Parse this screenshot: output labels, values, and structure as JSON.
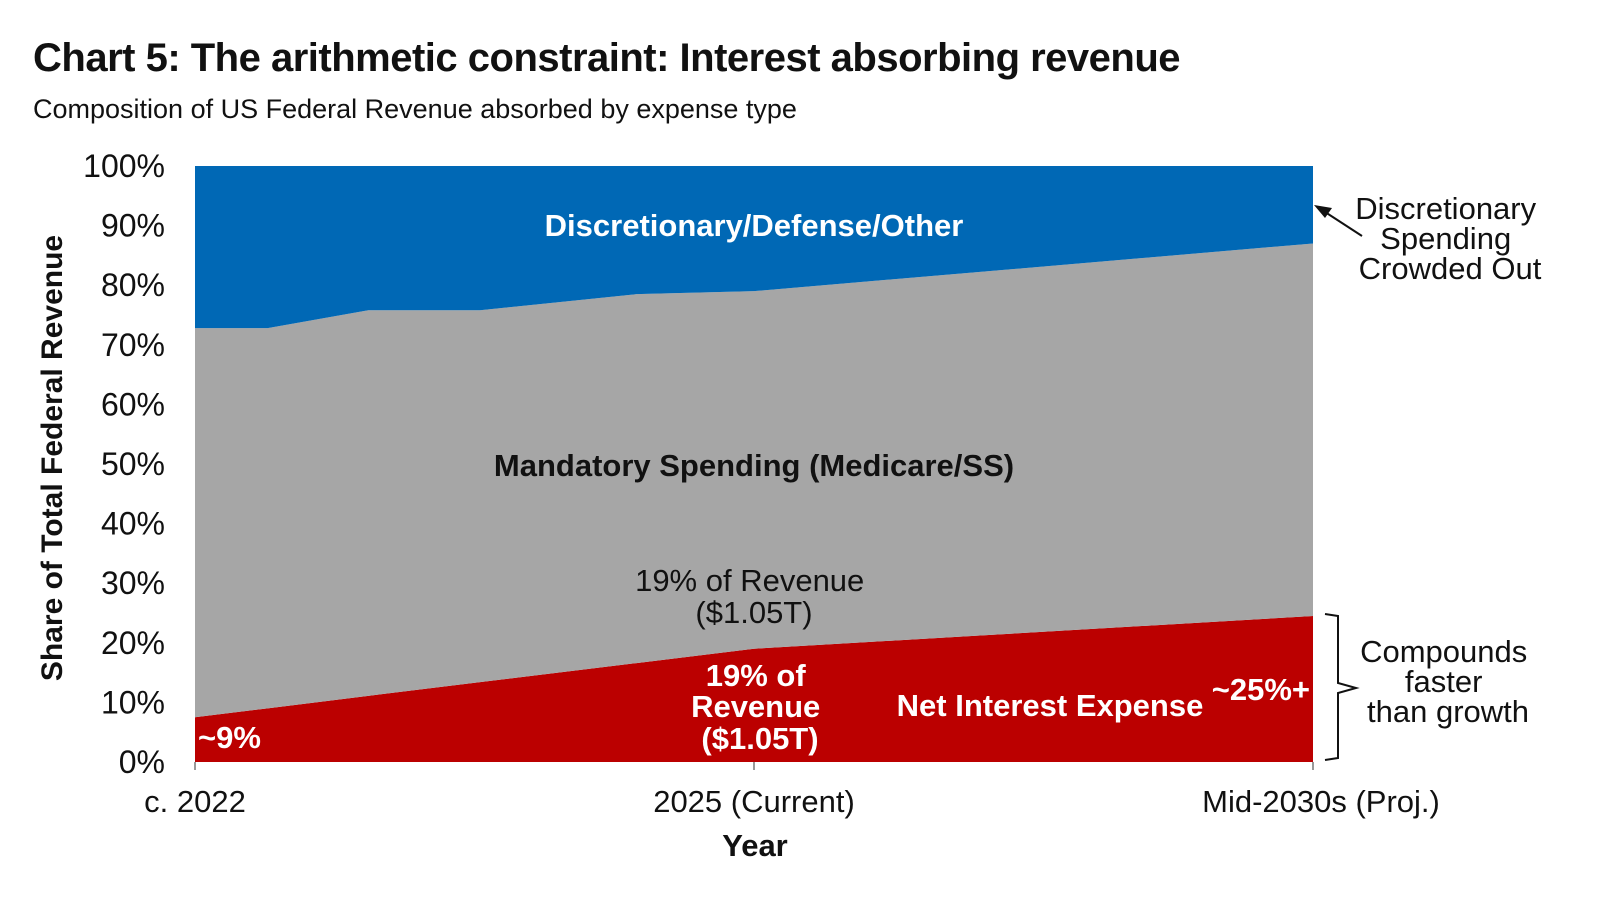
{
  "chart_data": {
    "type": "area",
    "stacked": true,
    "title": "Chart 5: The arithmetic constraint: Interest absorbing revenue",
    "subtitle": "Composition of US Federal Revenue absorbed by expense type",
    "xlabel": "Year",
    "ylabel": "Share of Total Federal Revenue",
    "x_tick_labels": [
      "c. 2022",
      "2025 (Current)",
      "Mid-2030s (Proj.)"
    ],
    "x_index": [
      0,
      0.13,
      0.31,
      0.51,
      0.79,
      1,
      2
    ],
    "ylim": [
      0,
      100
    ],
    "y_ticks": [
      "0%",
      "10%",
      "20%",
      "30%",
      "40%",
      "50%",
      "60%",
      "70%",
      "80%",
      "90%",
      "100%"
    ],
    "grid": false,
    "series": [
      {
        "name": "Net Interest Expense",
        "color": "#bb0000",
        "values": [
          7.5,
          9.0,
          11.1,
          13.4,
          16.6,
          19,
          24.5
        ]
      },
      {
        "name": "Mandatory Spending (Medicare/SS)",
        "color": "#a6a6a6",
        "values": [
          65.3,
          63.8,
          64.7,
          62.4,
          61.9,
          60,
          62.5
        ]
      },
      {
        "name": "Discretionary/Defense/Other",
        "color": "#0068b5",
        "values": [
          27.2,
          27.2,
          24.2,
          24.2,
          21.5,
          21,
          13
        ]
      }
    ],
    "annotations": {
      "start_interest": "~9%",
      "current_interest_lines": [
        "19% of",
        "Revenue",
        "($1.05T)"
      ],
      "current_gray_lines": [
        "19% of Revenue",
        "($1.05T)"
      ],
      "end_interest": "~25%+",
      "crowded_out_lines": [
        "Discretionary",
        "Spending",
        "Crowded Out"
      ],
      "compounds_lines": [
        "Compounds",
        "faster",
        "than growth"
      ]
    }
  }
}
